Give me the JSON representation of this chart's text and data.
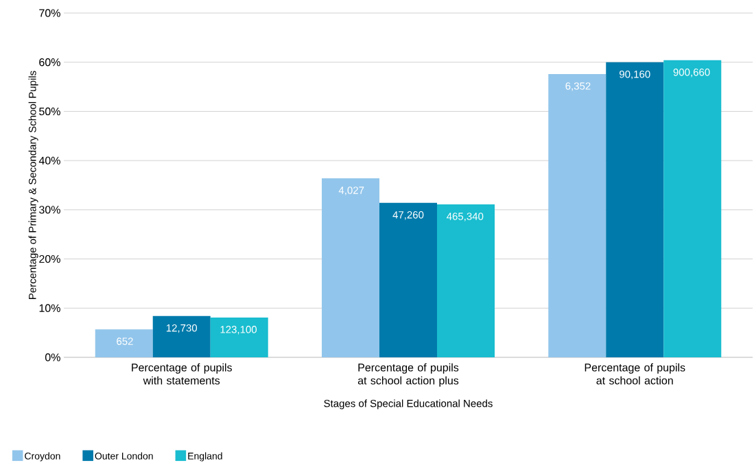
{
  "chart_data": {
    "type": "bar",
    "xlabel": "Stages of Special Educational Needs",
    "ylabel": "Percentage of Primary & Secondary School Pupils",
    "categories": [
      "Percentage of pupils with statements",
      "Percentage of pupils at school action plus",
      "Percentage of pupils at school action"
    ],
    "series": [
      {
        "name": "Croydon",
        "color": "#92c5eb",
        "values": [
          5.7,
          36.4,
          57.6
        ]
      },
      {
        "name": "Outer London",
        "color": "#007aab",
        "values": [
          8.4,
          31.4,
          60.0
        ]
      },
      {
        "name": "England",
        "color": "#19bdcf",
        "values": [
          8.1,
          31.1,
          60.4
        ]
      }
    ],
    "annotations": [
      "652",
      "4,027",
      "6,352",
      "12,730",
      "47,260",
      "90,160",
      "123,100",
      "465,340",
      "900,660"
    ],
    "ylim": [
      0,
      70
    ],
    "yticks": [
      {
        "value": 0,
        "label": "0%"
      },
      {
        "value": 10,
        "label": "10%"
      },
      {
        "value": 20,
        "label": "20%"
      },
      {
        "value": 30,
        "label": "30%"
      },
      {
        "value": 40,
        "label": "40%"
      },
      {
        "value": 50,
        "label": "50%"
      },
      {
        "value": 60,
        "label": "60%"
      },
      {
        "value": 70,
        "label": "70%"
      }
    ],
    "grid": "y",
    "legend": "bottom"
  }
}
